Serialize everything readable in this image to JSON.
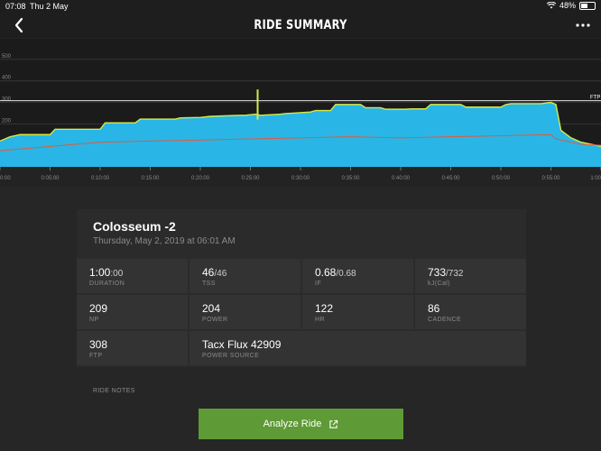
{
  "status_bar": {
    "time": "07:08",
    "date": "Thu 2 May",
    "battery": "48%",
    "battery_level": 0.48
  },
  "header": {
    "title": "RIDE SUMMARY",
    "back_icon": "chevron-left-icon",
    "more_icon": "more-dots-icon"
  },
  "chart_data": {
    "type": "area",
    "y_ticks": [
      "600",
      "500",
      "400",
      "300",
      "200"
    ],
    "x_ticks": [
      "0:00",
      "0:05:00",
      "0:10:00",
      "0:15:00",
      "0:20:00",
      "0:25:00",
      "0:30:00",
      "0:35:00",
      "0:40:00",
      "0:45:00",
      "0:50:00",
      "0:55:00",
      "1:00"
    ],
    "ftp_label": "FTP",
    "ftp_value": 308,
    "ylim": [
      0,
      600
    ],
    "series": [
      {
        "x": [
          0,
          1,
          2,
          5,
          5.5,
          10,
          10.5,
          13.5,
          14,
          17.5,
          18,
          20,
          21,
          24,
          24.5,
          25.5,
          26,
          28,
          28.5,
          31,
          31.5,
          33,
          33.5,
          36,
          36.5,
          38,
          38.5,
          40.5,
          41,
          42.5,
          43,
          46,
          46.5,
          50,
          50.5,
          51,
          54,
          55,
          55.5,
          56,
          57,
          58,
          60
        ],
        "y": [
          120,
          140,
          150,
          150,
          175,
          175,
          205,
          205,
          222,
          222,
          228,
          230,
          235,
          240,
          240,
          245,
          240,
          245,
          248,
          255,
          262,
          262,
          290,
          290,
          275,
          275,
          268,
          268,
          270,
          270,
          290,
          290,
          278,
          278,
          290,
          294,
          294,
          300,
          290,
          170,
          135,
          115,
          95
        ],
        "color": "#29b6e6"
      },
      {
        "x": [
          0,
          5,
          10,
          15,
          20,
          25,
          30,
          35,
          40,
          45,
          50,
          55,
          55.5,
          58,
          60
        ],
        "y": [
          75,
          95,
          115,
          120,
          125,
          130,
          135,
          140,
          135,
          140,
          145,
          150,
          130,
          105,
          100
        ],
        "color": "#e0593e"
      }
    ],
    "spike": {
      "x": 25,
      "y": 360
    }
  },
  "ride": {
    "title": "Colosseum -2",
    "date": "Thursday, May 2, 2019 at 06:01 AM"
  },
  "stats": [
    {
      "value": "1:00",
      "sub": ":00",
      "label": "DURATION"
    },
    {
      "value": "46",
      "sub": "/46",
      "label": "TSS"
    },
    {
      "value": "0.68",
      "sub": "/0.68",
      "label": "IF"
    },
    {
      "value": "733",
      "sub": "/732",
      "label": "kJ(Cal)"
    },
    {
      "value": "209",
      "sub": "",
      "label": "NP"
    },
    {
      "value": "204",
      "sub": "",
      "label": "POWER"
    },
    {
      "value": "122",
      "sub": "",
      "label": "HR"
    },
    {
      "value": "86",
      "sub": "",
      "label": "CADENCE"
    },
    {
      "value": "308",
      "sub": "",
      "label": "FTP"
    },
    {
      "value": "Tacx Flux 42909",
      "sub": "",
      "label": "POWER SOURCE"
    }
  ],
  "notes_label": "RIDE NOTES",
  "analyze_button": {
    "label": "Analyze Ride",
    "icon": "external-link-icon"
  },
  "colors": {
    "accent_green": "#5e9a35",
    "power_fill": "#29b6e6",
    "power_line": "#d4e94a",
    "hr_line": "#e0593e"
  }
}
